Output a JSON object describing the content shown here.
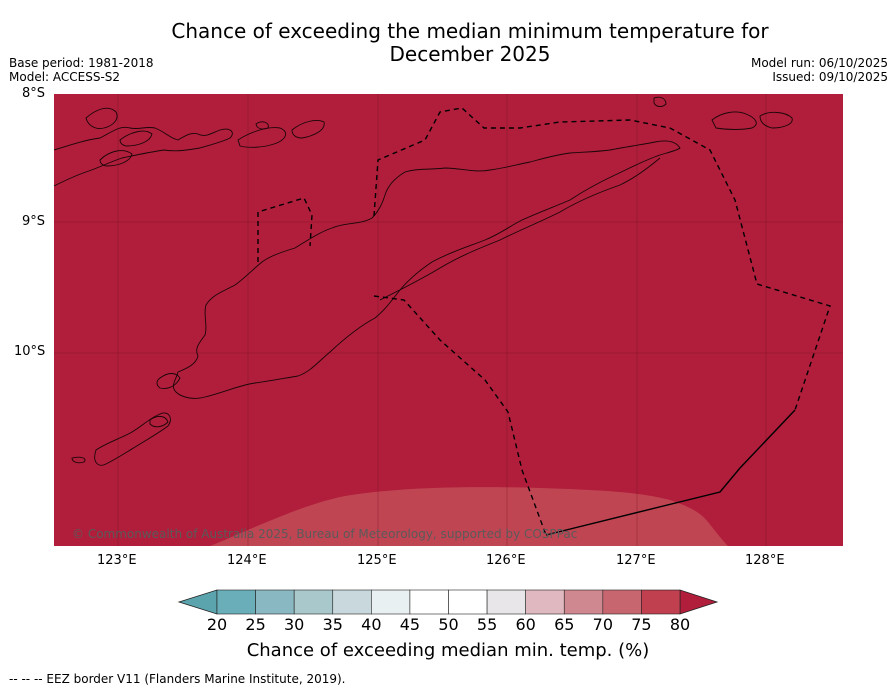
{
  "title_line1": "Chance of exceeding the median minimum temperature for",
  "title_line2": "December 2025",
  "base_period": "Base period: 1981-2018",
  "model": "Model: ACCESS-S2",
  "model_run": "Model run: 06/10/2025",
  "issued": "Issued: 09/10/2025",
  "lat_labels": [
    "8°S",
    "9°S",
    "10°S"
  ],
  "lon_labels": [
    "123°E",
    "124°E",
    "125°E",
    "126°E",
    "127°E",
    "128°E"
  ],
  "copyright": "© Commonwealth of Australia 2025, Bureau of Meteorology, supported by COSPPac",
  "colorbar": {
    "title": "Chance of exceeding median min. temp. (%)",
    "ticks": [
      "20",
      "25",
      "30",
      "35",
      "40",
      "45",
      "50",
      "55",
      "60",
      "65",
      "70",
      "75",
      "80"
    ],
    "colors": [
      "#6aaeb9",
      "#8ab8c2",
      "#a8c8cc",
      "#c8d8dc",
      "#e8f0f2",
      "#ffffff",
      "#ffffff",
      "#e8e6e8",
      "#e0b8c0",
      "#d08890",
      "#c86670",
      "#c04050"
    ],
    "under_color": "#5ba3ad",
    "over_color": "#b01e3b"
  },
  "map": {
    "main_color": "#b01e3b",
    "lighter_color": "#c04553"
  },
  "footer": "--  --  -- EEZ border V11 (Flanders Marine Institute, 2019)."
}
